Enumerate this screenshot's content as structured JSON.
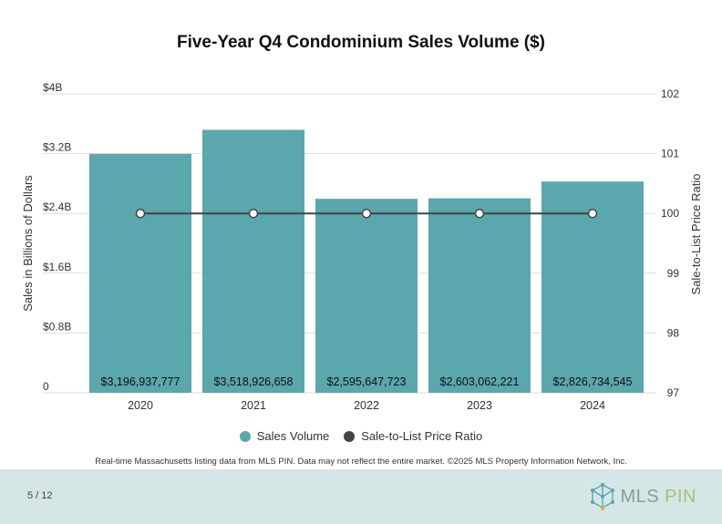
{
  "page": {
    "page_number": "5 / 12",
    "disclaimer": "Real-time Massachusetts listing data from MLS PIN. Data may not reflect the entire market. ©2025 MLS Property Information Network, Inc.",
    "logo_text_left": "MLS",
    "logo_text_right": "PIN"
  },
  "colors": {
    "bar": "#5aa7ad",
    "line": "#444444",
    "footer": "#d5e6e6"
  },
  "chart_data": {
    "type": "bar",
    "title": "Five-Year Q4 Condominium Sales Volume ($)",
    "categories": [
      "2020",
      "2021",
      "2022",
      "2023",
      "2024"
    ],
    "series": [
      {
        "name": "Sales Volume",
        "type": "bar",
        "axis": "left",
        "values": [
          3196937777,
          3518926658,
          2595647723,
          2603062221,
          2826734545
        ],
        "labels": [
          "$3,196,937,777",
          "$3,518,926,658",
          "$2,595,647,723",
          "$2,603,062,221",
          "$2,826,734,545"
        ]
      },
      {
        "name": "Sale-to-List Price Ratio",
        "type": "line",
        "axis": "right",
        "values": [
          100,
          100,
          100,
          100,
          100
        ]
      }
    ],
    "ylabel_left": "Sales in Billions of Dollars",
    "ylabel_right": "Sale-to-List Price Ratio",
    "ylim_left": [
      0,
      4000000000
    ],
    "ylim_right": [
      97,
      102
    ],
    "left_ticks": [
      {
        "value": 0,
        "label": "0"
      },
      {
        "value": 800000000,
        "label": "$0.8B"
      },
      {
        "value": 1600000000,
        "label": "$1.6B"
      },
      {
        "value": 2400000000,
        "label": "$2.4B"
      },
      {
        "value": 3200000000,
        "label": "$3.2B"
      },
      {
        "value": 4000000000,
        "label": "$4B"
      }
    ],
    "right_ticks": [
      {
        "value": 97,
        "label": "97"
      },
      {
        "value": 98,
        "label": "98"
      },
      {
        "value": 99,
        "label": "99"
      },
      {
        "value": 100,
        "label": "100"
      },
      {
        "value": 101,
        "label": "101"
      },
      {
        "value": 102,
        "label": "102"
      }
    ],
    "grid": true,
    "legend_position": "bottom"
  }
}
